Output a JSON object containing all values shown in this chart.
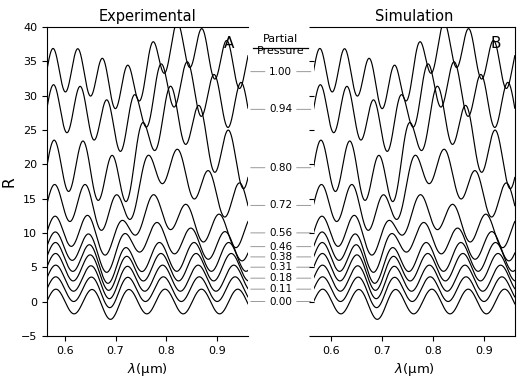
{
  "partial_pressures": [
    0.0,
    0.11,
    0.18,
    0.31,
    0.38,
    0.46,
    0.56,
    0.72,
    0.8,
    0.94,
    1.0
  ],
  "offsets": [
    0.0,
    1.8,
    3.4,
    5.0,
    6.5,
    8.0,
    10.0,
    14.0,
    19.5,
    28.0,
    33.5
  ],
  "lambda_min": 0.565,
  "lambda_max": 0.96,
  "ylim": [
    -5,
    40
  ],
  "yticks": [
    -5,
    0,
    5,
    10,
    15,
    20,
    25,
    30,
    35,
    40
  ],
  "xticks": [
    0.6,
    0.7,
    0.8,
    0.9
  ],
  "title_exp": "Experimental",
  "title_sim": "Simulation",
  "xlabel": "$\\lambda$(μm)",
  "ylabel": "R",
  "label_A": "A",
  "label_B": "B",
  "pp_header_line1": "Partial",
  "pp_header_line2": "Pressure",
  "bg_color": "#ffffff",
  "line_color": "#000000",
  "arrow_color": "#999999",
  "base_freq": [
    14.0,
    14.2,
    14.3,
    14.5,
    14.7,
    15.0,
    15.5,
    16.5,
    17.5,
    19.0,
    20.5
  ],
  "base_amp": [
    1.8,
    1.8,
    1.9,
    2.0,
    2.1,
    2.1,
    2.3,
    2.8,
    3.8,
    3.5,
    3.2
  ],
  "broad_peak_center": [
    0.76,
    0.76,
    0.76,
    0.76,
    0.76,
    0.76,
    0.76,
    0.77,
    0.78,
    0.78,
    0.78
  ],
  "broad_peak_width": [
    0.06,
    0.06,
    0.06,
    0.06,
    0.06,
    0.065,
    0.07,
    0.075,
    0.075,
    0.075,
    0.08
  ],
  "broad_peak_amp": [
    0.0,
    0.0,
    0.0,
    0.0,
    0.0,
    1.5,
    3.5,
    7.0,
    10.0,
    5.0,
    6.0
  ],
  "dip_center": [
    0.69,
    0.69,
    0.69,
    0.69,
    0.69,
    0.69,
    0.7,
    0.71,
    0.72,
    0.72,
    0.73
  ],
  "dip_width": [
    0.015,
    0.015,
    0.017,
    0.02,
    0.022,
    0.025,
    0.03,
    0.04,
    0.045,
    0.045,
    0.05
  ],
  "dip_amp": [
    0.8,
    0.9,
    1.1,
    1.4,
    1.8,
    2.5,
    3.5,
    6.0,
    8.5,
    6.0,
    7.0
  ]
}
